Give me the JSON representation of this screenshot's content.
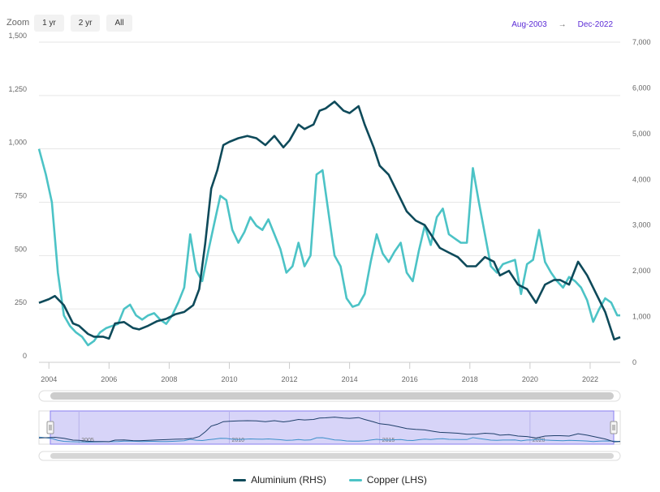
{
  "toolbar": {
    "zoom_label": "Zoom",
    "buttons": [
      "1 yr",
      "2 yr",
      "All"
    ]
  },
  "range": {
    "from": "Aug-2003",
    "arrow": "→",
    "to": "Dec-2022"
  },
  "colors": {
    "aluminium": "#0e4a5a",
    "copper": "#4cc3c6",
    "navigator_fill": "#c9c5f5",
    "navigator_stroke": "#8a7ff0"
  },
  "chart_data": {
    "type": "line",
    "title": "",
    "x_range": [
      2003.67,
      2023.0
    ],
    "x_ticks": [
      "2004",
      "2006",
      "2008",
      "2010",
      "2012",
      "2014",
      "2016",
      "2018",
      "2020",
      "2022"
    ],
    "y_left": {
      "range": [
        0,
        1500
      ],
      "ticks": [
        "0",
        "250",
        "500",
        "750",
        "1,000",
        "1,250",
        "1,500"
      ]
    },
    "y_right": {
      "range": [
        0,
        7000
      ],
      "ticks": [
        "0",
        "1,000",
        "2,000",
        "3,000",
        "4,000",
        "5,000",
        "6,000",
        "7,000"
      ]
    },
    "grid": true,
    "legend_position": "bottom",
    "navigator_ticks": [
      "2005",
      "2010",
      "2015",
      "2020"
    ],
    "series": [
      {
        "name": "Aluminium (RHS)",
        "axis": "right",
        "x": [
          2003.67,
          2004.0,
          2004.2,
          2004.5,
          2004.8,
          2005.0,
          2005.3,
          2005.5,
          2005.8,
          2006.0,
          2006.2,
          2006.5,
          2006.8,
          2007.0,
          2007.3,
          2007.6,
          2007.9,
          2008.2,
          2008.5,
          2008.8,
          2009.0,
          2009.2,
          2009.4,
          2009.6,
          2009.8,
          2010.0,
          2010.3,
          2010.6,
          2010.9,
          2011.2,
          2011.5,
          2011.8,
          2012.0,
          2012.3,
          2012.5,
          2012.8,
          2013.0,
          2013.2,
          2013.5,
          2013.8,
          2014.0,
          2014.3,
          2014.5,
          2014.8,
          2015.0,
          2015.3,
          2015.6,
          2015.9,
          2016.2,
          2016.5,
          2016.8,
          2017.0,
          2017.3,
          2017.6,
          2017.9,
          2018.2,
          2018.5,
          2018.8,
          2019.0,
          2019.3,
          2019.6,
          2019.9,
          2020.2,
          2020.5,
          2020.8,
          2021.0,
          2021.3,
          2021.6,
          2021.9,
          2022.2,
          2022.5,
          2022.8,
          2023.0
        ],
        "y": [
          1300,
          1380,
          1450,
          1250,
          850,
          800,
          620,
          560,
          560,
          520,
          850,
          880,
          750,
          720,
          800,
          900,
          950,
          1050,
          1100,
          1250,
          1600,
          2600,
          3800,
          4200,
          4750,
          4820,
          4900,
          4950,
          4900,
          4750,
          4950,
          4700,
          4850,
          5200,
          5100,
          5200,
          5500,
          5550,
          5700,
          5500,
          5450,
          5600,
          5200,
          4700,
          4300,
          4100,
          3700,
          3300,
          3100,
          3000,
          2700,
          2500,
          2400,
          2300,
          2100,
          2100,
          2300,
          2200,
          1900,
          2000,
          1700,
          1600,
          1300,
          1700,
          1800,
          1800,
          1700,
          2200,
          1900,
          1500,
          1100,
          500,
          550
        ]
      },
      {
        "name": "Copper (LHS)",
        "axis": "left",
        "x": [
          2003.67,
          2003.9,
          2004.1,
          2004.3,
          2004.5,
          2004.7,
          2004.9,
          2005.1,
          2005.3,
          2005.5,
          2005.7,
          2005.9,
          2006.1,
          2006.3,
          2006.5,
          2006.7,
          2006.9,
          2007.1,
          2007.3,
          2007.5,
          2007.7,
          2007.9,
          2008.1,
          2008.3,
          2008.5,
          2008.7,
          2008.9,
          2009.1,
          2009.3,
          2009.5,
          2009.7,
          2009.9,
          2010.1,
          2010.3,
          2010.5,
          2010.7,
          2010.9,
          2011.1,
          2011.3,
          2011.5,
          2011.7,
          2011.9,
          2012.1,
          2012.3,
          2012.5,
          2012.7,
          2012.9,
          2013.1,
          2013.3,
          2013.5,
          2013.7,
          2013.9,
          2014.1,
          2014.3,
          2014.5,
          2014.7,
          2014.9,
          2015.1,
          2015.3,
          2015.5,
          2015.7,
          2015.9,
          2016.1,
          2016.3,
          2016.5,
          2016.7,
          2016.9,
          2017.1,
          2017.3,
          2017.5,
          2017.7,
          2017.9,
          2018.1,
          2018.3,
          2018.5,
          2018.7,
          2018.9,
          2019.1,
          2019.3,
          2019.5,
          2019.7,
          2019.9,
          2020.1,
          2020.3,
          2020.5,
          2020.7,
          2020.9,
          2021.1,
          2021.3,
          2021.5,
          2021.7,
          2021.9,
          2022.1,
          2022.3,
          2022.5,
          2022.7,
          2022.9,
          2023.0
        ],
        "y": [
          1000,
          880,
          750,
          420,
          220,
          170,
          140,
          120,
          80,
          100,
          140,
          160,
          170,
          180,
          250,
          270,
          220,
          200,
          220,
          230,
          200,
          180,
          220,
          280,
          350,
          600,
          430,
          380,
          520,
          650,
          780,
          760,
          620,
          560,
          610,
          680,
          640,
          620,
          670,
          600,
          530,
          420,
          450,
          560,
          450,
          500,
          880,
          900,
          700,
          500,
          450,
          300,
          260,
          270,
          320,
          470,
          600,
          510,
          470,
          520,
          560,
          420,
          380,
          520,
          640,
          550,
          680,
          720,
          600,
          580,
          560,
          560,
          910,
          750,
          600,
          450,
          420,
          460,
          470,
          480,
          320,
          460,
          480,
          620,
          470,
          420,
          380,
          350,
          400,
          380,
          350,
          290,
          190,
          250,
          300,
          280,
          220,
          220
        ]
      }
    ]
  },
  "legend": {
    "aluminium": "Aluminium (RHS)",
    "copper": "Copper (LHS)"
  }
}
